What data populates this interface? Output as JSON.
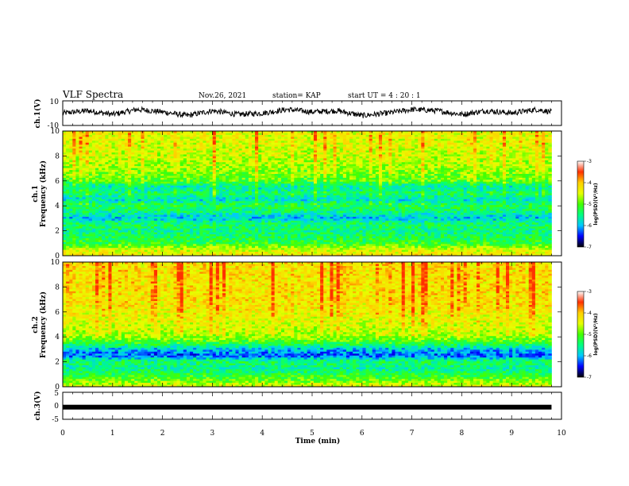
{
  "header": {
    "title": "VLF Spectra",
    "date": "Nov.26, 2021",
    "station": "station= KAP",
    "start": "start  UT =   4 : 20 : 1"
  },
  "colors": {
    "scale": [
      "#000000",
      "#0000ff",
      "#00c8ff",
      "#00ff80",
      "#44ff00",
      "#e6ff00",
      "#ffd000",
      "#ff3000",
      "#ffffff"
    ],
    "trace": "#000000"
  },
  "chart_data": [
    {
      "type": "line",
      "name": "ch1-waveform",
      "ylabel": "ch.1(V)",
      "ylim": [
        -10,
        10
      ],
      "yticks": [
        "10",
        "-10"
      ],
      "x": [
        0,
        0.5,
        1,
        1.5,
        2,
        2.5,
        3,
        3.5,
        4,
        4.5,
        5,
        5.5,
        6,
        6.5,
        7,
        7.5,
        8,
        8.5,
        9,
        9.5,
        9.8
      ],
      "y": [
        0,
        2,
        -1,
        3,
        1,
        -2,
        2,
        -1,
        0,
        3,
        1,
        2,
        -2,
        0,
        3,
        2,
        -1,
        2,
        0,
        3,
        1
      ],
      "xlim": [
        0,
        10
      ]
    },
    {
      "type": "heatmap",
      "name": "ch1-spectrogram",
      "ylabel_line1": "ch.1",
      "ylabel_line2": "Frequency  (kHz)",
      "ylim": [
        0,
        10
      ],
      "yticks": [
        "0",
        "2",
        "4",
        "6",
        "8",
        "10"
      ],
      "xlim": [
        0,
        10
      ],
      "data_xmax": 9.8,
      "colorbar": {
        "range": [
          -7,
          -3
        ],
        "ticks": [
          "-3",
          "-4",
          "-5",
          "-6",
          "-7"
        ],
        "label": "log(PSD)(V²/Hz)"
      },
      "band_profile": [
        {
          "f": 0,
          "v": -3.8
        },
        {
          "f": 0.5,
          "v": -4.2
        },
        {
          "f": 1.0,
          "v": -4.9
        },
        {
          "f": 1.5,
          "v": -5.1
        },
        {
          "f": 2.0,
          "v": -5.3
        },
        {
          "f": 2.5,
          "v": -5.1
        },
        {
          "f": 3.0,
          "v": -5.8
        },
        {
          "f": 3.5,
          "v": -5.3
        },
        {
          "f": 4.0,
          "v": -5.0
        },
        {
          "f": 4.5,
          "v": -5.7
        },
        {
          "f": 5.0,
          "v": -5.2
        },
        {
          "f": 5.5,
          "v": -5.6
        },
        {
          "f": 6.0,
          "v": -4.8
        },
        {
          "f": 7.0,
          "v": -4.5
        },
        {
          "f": 8.0,
          "v": -4.3
        },
        {
          "f": 9.0,
          "v": -4.2
        },
        {
          "f": 10.0,
          "v": -4.1
        }
      ]
    },
    {
      "type": "heatmap",
      "name": "ch2-spectrogram",
      "ylabel_line1": "ch.2",
      "ylabel_line2": "Frequency  (kHz)",
      "ylim": [
        0,
        10
      ],
      "yticks": [
        "0",
        "2",
        "4",
        "6",
        "8",
        "10"
      ],
      "xlim": [
        0,
        10
      ],
      "data_xmax": 9.8,
      "colorbar": {
        "range": [
          -7,
          -3
        ],
        "ticks": [
          "-3",
          "-4",
          "-5",
          "-6",
          "-7"
        ],
        "label": "log(PSD)(V²/Hz)"
      },
      "band_profile": [
        {
          "f": 0,
          "v": -4.0
        },
        {
          "f": 0.5,
          "v": -4.6
        },
        {
          "f": 1.0,
          "v": -5.0
        },
        {
          "f": 1.5,
          "v": -5.4
        },
        {
          "f": 2.0,
          "v": -5.1
        },
        {
          "f": 2.5,
          "v": -6.2
        },
        {
          "f": 3.0,
          "v": -5.8
        },
        {
          "f": 3.5,
          "v": -4.9
        },
        {
          "f": 4.0,
          "v": -4.4
        },
        {
          "f": 5.0,
          "v": -4.2
        },
        {
          "f": 6.0,
          "v": -4.0
        },
        {
          "f": 7.0,
          "v": -3.9
        },
        {
          "f": 8.0,
          "v": -3.9
        },
        {
          "f": 9.0,
          "v": -3.9
        },
        {
          "f": 10.0,
          "v": -3.9
        }
      ]
    },
    {
      "type": "line",
      "name": "ch3-waveform",
      "ylabel": "ch.3(V)",
      "ylim": [
        -5,
        5
      ],
      "yticks": [
        "5",
        "0",
        "-5"
      ],
      "x": [
        0,
        9.8
      ],
      "y": [
        -0.5,
        -0.5
      ],
      "xlim": [
        0,
        10
      ],
      "xlabel": "Time  (min)",
      "xticks": [
        "0",
        "1",
        "2",
        "3",
        "4",
        "5",
        "6",
        "7",
        "8",
        "9",
        "10"
      ]
    }
  ]
}
